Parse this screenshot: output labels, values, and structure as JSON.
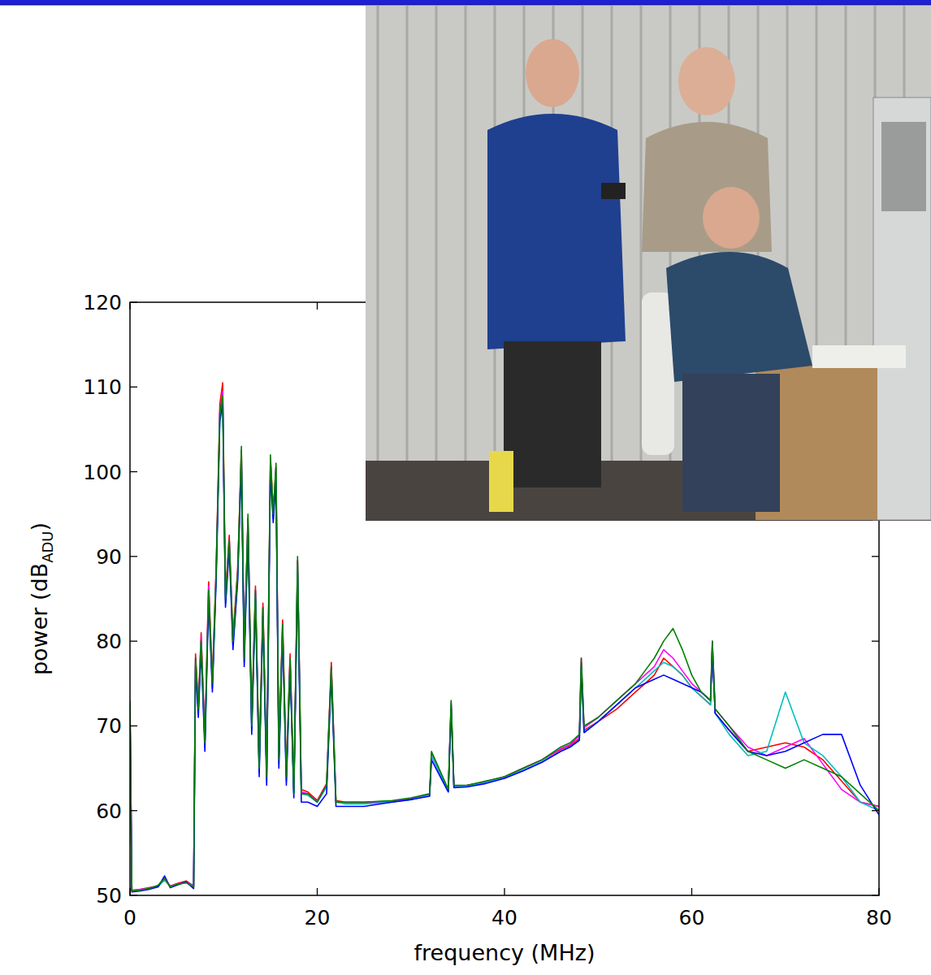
{
  "chart_data": {
    "type": "line",
    "x_label": "frequency (MHz)",
    "y_label": "power (dBADU)",
    "y_label_subscript": "ADU",
    "xlim": [
      0,
      80
    ],
    "ylim": [
      50,
      120
    ],
    "xticks": [
      0,
      20,
      40,
      60,
      80
    ],
    "yticks": [
      50,
      60,
      70,
      80,
      90,
      100,
      110,
      120
    ],
    "grid": false,
    "x": [
      0,
      0.2,
      1,
      2,
      3,
      3.7,
      4.3,
      5,
      6,
      6.8,
      7.0,
      7.3,
      7.6,
      8.0,
      8.4,
      8.8,
      9.2,
      9.6,
      9.9,
      10.2,
      10.6,
      11.0,
      11.5,
      11.9,
      12.2,
      12.6,
      13.0,
      13.4,
      13.8,
      14.2,
      14.6,
      15.0,
      15.3,
      15.6,
      15.9,
      16.3,
      16.7,
      17.1,
      17.5,
      17.9,
      18.3,
      19,
      20,
      21,
      21.5,
      22,
      23,
      25,
      28,
      30,
      32,
      32.2,
      34,
      34.3,
      34.6,
      36,
      38,
      40,
      42,
      44,
      46,
      47,
      48,
      48.2,
      48.5,
      50,
      52,
      54,
      55,
      56,
      57,
      58,
      59,
      60,
      61,
      62,
      62.2,
      62.5,
      64,
      66,
      68,
      70,
      72,
      74,
      76,
      78,
      80
    ],
    "series": [
      {
        "color": "#ff0000",
        "values": [
          72.5,
          50.6,
          50.7,
          50.9,
          51.1,
          51.8,
          51.1,
          51.4,
          51.7,
          51.1,
          78.5,
          72.5,
          81,
          68.5,
          87,
          75.5,
          88.5,
          108,
          110.5,
          85.5,
          92.5,
          80.5,
          88.5,
          102.5,
          78.5,
          94.5,
          70.5,
          86.5,
          65.5,
          84.5,
          64.5,
          101.5,
          95.5,
          100.5,
          66.5,
          82.5,
          64.5,
          78.5,
          62.5,
          89.5,
          62.5,
          62.2,
          61.2,
          63.2,
          77.5,
          61.2,
          61,
          61,
          61.1,
          61.4,
          61.9,
          66.5,
          62.4,
          72.5,
          62.9,
          63,
          63.4,
          64,
          65,
          66,
          67.2,
          67.7,
          68.5,
          77.5,
          69.5,
          70.5,
          72,
          74,
          75,
          76,
          78,
          77,
          76,
          74.5,
          73.5,
          72.5,
          79.5,
          71.5,
          69.5,
          67,
          67.5,
          68,
          67.5,
          66,
          63.5,
          61,
          60.5
        ]
      },
      {
        "color": "#ff00ff",
        "values": [
          72.3,
          50.6,
          50.7,
          50.8,
          51.1,
          52,
          51.1,
          51.3,
          51.6,
          51.1,
          78,
          72,
          80.5,
          68,
          86.5,
          75,
          88,
          107,
          109.5,
          85,
          92,
          80,
          88,
          102.5,
          78,
          94.5,
          70,
          86,
          65,
          84,
          64,
          101.5,
          95,
          100.5,
          66,
          82,
          64,
          78,
          62.2,
          89.5,
          62.2,
          62,
          61.1,
          63,
          77,
          61.1,
          60.9,
          60.9,
          61.1,
          61.4,
          61.9,
          66.8,
          62.4,
          72.8,
          62.9,
          63,
          63.4,
          64,
          65,
          66,
          67.3,
          67.8,
          68.8,
          78,
          69.8,
          71,
          73,
          75,
          76,
          77,
          79,
          78,
          76.5,
          75,
          74,
          73,
          80,
          72,
          70,
          67.5,
          66.5,
          67.5,
          68.5,
          65.5,
          62.5,
          61,
          60.5
        ]
      },
      {
        "color": "#00bfbf",
        "values": [
          72,
          50.5,
          50.6,
          50.8,
          51,
          51.9,
          51,
          51.3,
          51.5,
          51,
          77.5,
          71.5,
          80,
          67.5,
          86,
          74.5,
          87.5,
          106.5,
          109,
          84.5,
          91.5,
          79.5,
          87.5,
          102,
          77.5,
          94,
          69.5,
          85.5,
          64.5,
          83.5,
          63.5,
          101,
          94.5,
          100,
          65.5,
          81.5,
          63.5,
          77.5,
          62,
          89,
          62,
          61.8,
          61,
          62.8,
          76.5,
          61,
          60.8,
          60.8,
          61,
          61.3,
          61.8,
          66.5,
          62.3,
          72.5,
          62.8,
          62.9,
          63.3,
          63.9,
          64.8,
          65.8,
          67,
          67.5,
          68.3,
          77,
          69.3,
          70.5,
          72.5,
          74.5,
          75.5,
          76.5,
          77.5,
          77,
          76,
          74.5,
          73.5,
          72.5,
          79.5,
          71.5,
          69,
          66.5,
          67,
          74,
          68,
          66.5,
          64,
          61,
          60
        ]
      },
      {
        "color": "#0000ff",
        "values": [
          72,
          50.4,
          50.5,
          50.7,
          51,
          52.3,
          50.9,
          51.2,
          51.6,
          50.8,
          77,
          71,
          79,
          67,
          85,
          74,
          87,
          106,
          108,
          84,
          91,
          79,
          87,
          101,
          77,
          93,
          69,
          85,
          64,
          83,
          63,
          100,
          94,
          99,
          65,
          81,
          63,
          77,
          61.5,
          88,
          61,
          61,
          60.5,
          62,
          76,
          60.5,
          60.5,
          60.5,
          61,
          61.3,
          61.7,
          66,
          62.2,
          72,
          62.7,
          62.8,
          63.2,
          63.8,
          64.7,
          65.7,
          67,
          67.5,
          68.3,
          77,
          69.2,
          70.5,
          72.5,
          74.5,
          75,
          75.5,
          76,
          75.5,
          75,
          74.5,
          74,
          73,
          79,
          71.5,
          69.5,
          67,
          66.5,
          67,
          68,
          69,
          69,
          63,
          59.5
        ]
      },
      {
        "color": "#008000",
        "values": [
          73,
          50.5,
          50.6,
          50.8,
          51.2,
          52,
          51,
          51.3,
          51.5,
          51,
          78,
          72,
          80,
          68,
          86,
          75,
          88,
          107,
          109,
          85,
          92,
          80,
          88,
          103,
          78,
          95,
          70,
          86,
          65,
          84,
          64,
          102,
          95,
          101,
          66,
          82,
          64,
          78,
          62,
          90,
          62,
          62,
          61,
          63,
          77,
          61,
          61,
          61,
          61.2,
          61.5,
          62,
          67,
          62.5,
          73,
          63,
          63,
          63.5,
          64,
          65,
          66,
          67.5,
          68,
          69,
          78,
          70,
          71,
          73,
          75,
          76.5,
          78,
          80,
          81.5,
          79,
          76,
          74,
          73,
          80,
          72,
          70,
          67,
          66,
          65,
          66,
          65,
          64,
          62,
          60
        ]
      }
    ]
  }
}
